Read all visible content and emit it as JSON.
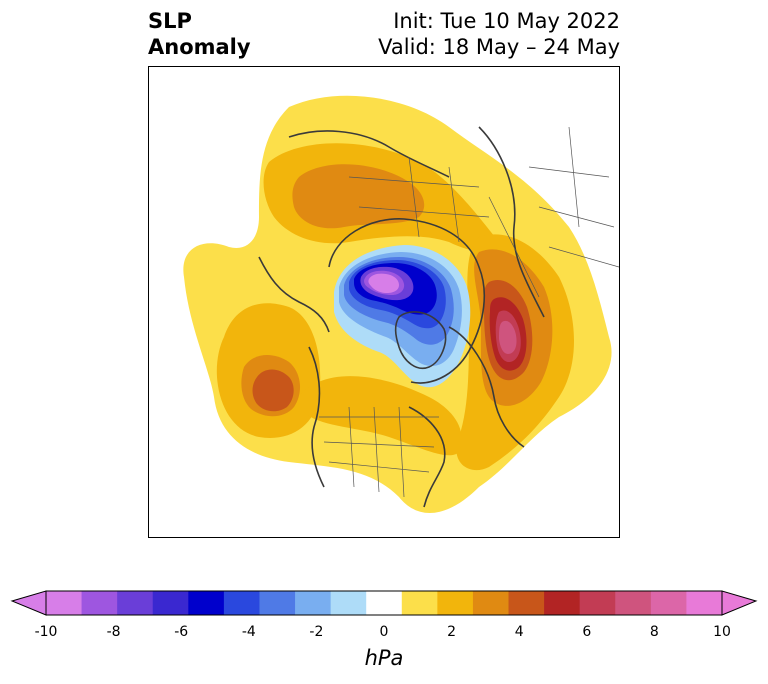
{
  "title": {
    "left_line1": "SLP",
    "left_line2": "Anomaly",
    "right_line1": "Init: Tue 10 May 2022",
    "right_line2": "Valid: 18 May – 24 May"
  },
  "colorbar": {
    "unit": "hPa",
    "levels": [
      -10,
      -9,
      -8,
      -7,
      -6,
      -5,
      -4,
      -3,
      -2,
      -1,
      1,
      2,
      3,
      4,
      5,
      6,
      7,
      8,
      9,
      10
    ],
    "colors": {
      "neg_extend": "#d77ee8",
      "bins": [
        "#d77ee8",
        "#9e56e0",
        "#6a3ed8",
        "#3a28d0",
        "#0000cc",
        "#2a48de",
        "#4f7ae6",
        "#79aef0",
        "#aedcf8",
        "#ffffff",
        "#fcdf4a",
        "#f2b50c",
        "#e08a12",
        "#c8561a",
        "#b22424",
        "#c23c54",
        "#cf547e",
        "#dc66a8",
        "#e87ad8"
      ],
      "pos_extend": "#e87ad8"
    },
    "tick_labels": [
      "-10",
      "-8",
      "-6",
      "-4",
      "-2",
      "0",
      "2",
      "4",
      "6",
      "8",
      "10"
    ]
  },
  "map": {
    "projection": "north-polar-stereographic",
    "field": "sea-level-pressure-anomaly",
    "features": [
      {
        "name": "deep-low-over-arctic-ocean",
        "sign": "negative",
        "peak_hpa": -9
      },
      {
        "name": "high-over-scandinavia-barents",
        "sign": "positive",
        "peak_hpa": 4
      },
      {
        "name": "high-over-western-russia",
        "sign": "positive",
        "peak_hpa": 8
      },
      {
        "name": "high-over-north-pacific",
        "sign": "positive",
        "peak_hpa": 5
      },
      {
        "name": "high-over-north-america-atlantic",
        "sign": "positive",
        "peak_hpa": 3
      }
    ]
  }
}
